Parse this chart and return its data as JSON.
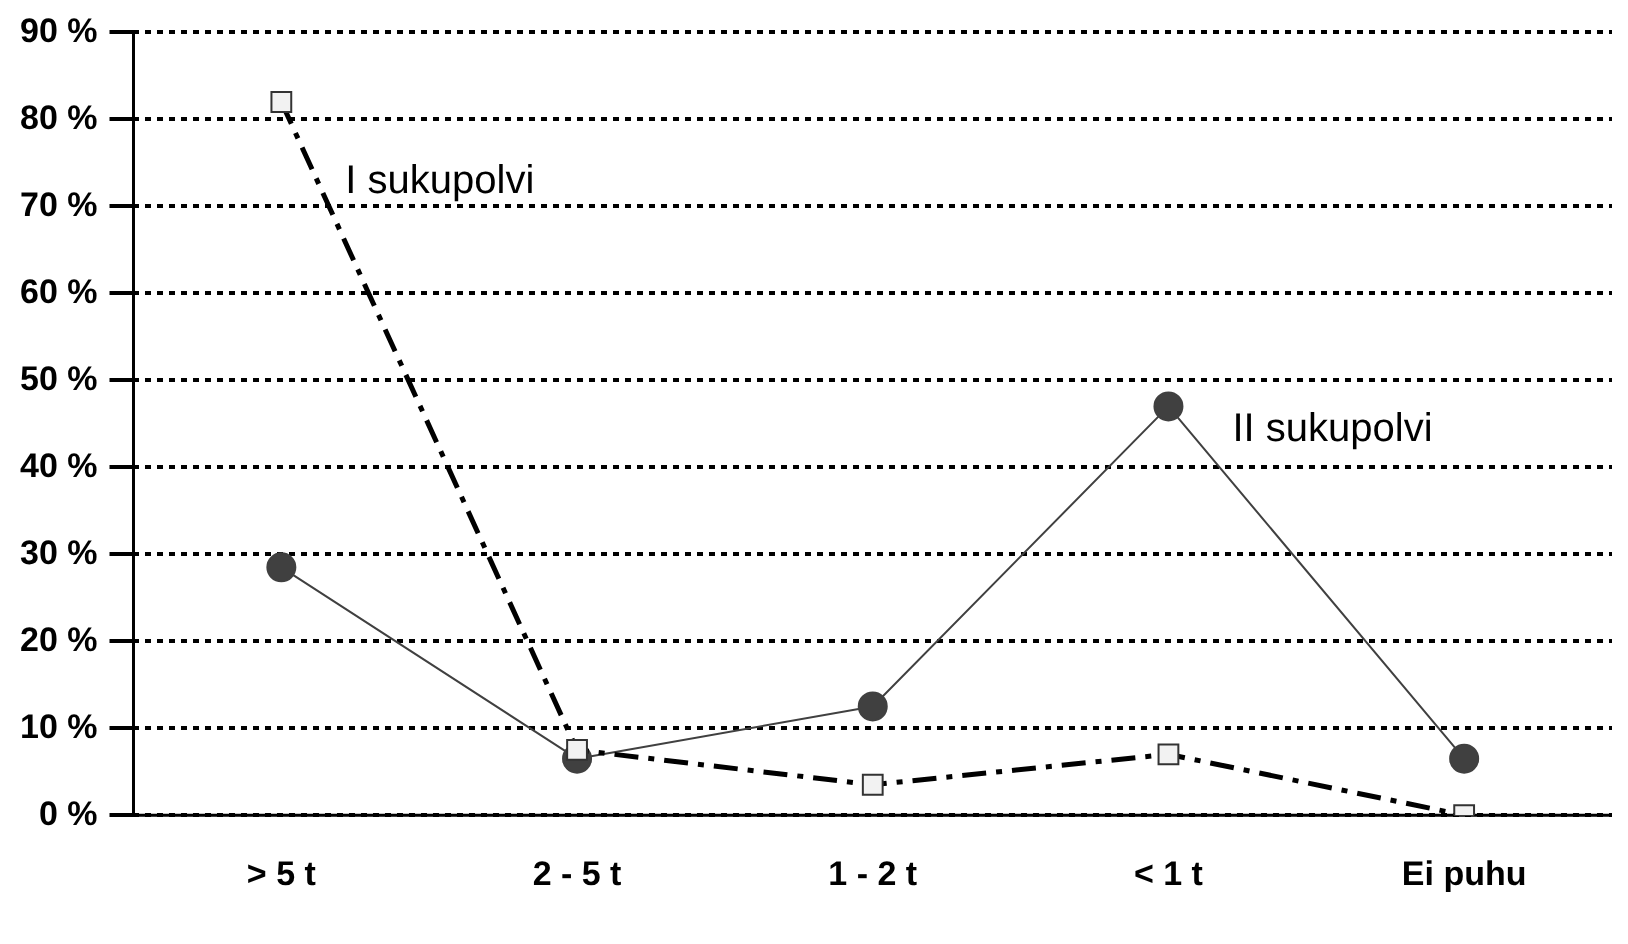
{
  "chart_data": {
    "type": "line",
    "categories": [
      "> 5 t",
      "2 - 5 t",
      "1 - 2 t",
      "< 1 t",
      "Ei puhu"
    ],
    "series": [
      {
        "name": "I sukupolvi",
        "color": "#000000",
        "marker": "square",
        "line_style": "dashed",
        "values": [
          82,
          7.5,
          3.5,
          7,
          0
        ]
      },
      {
        "name": "II sukupolvi",
        "color": "#404040",
        "marker": "circle",
        "line_style": "solid",
        "values": [
          28.5,
          6.5,
          12.5,
          47,
          6.5
        ]
      }
    ],
    "ylim": [
      0,
      90
    ],
    "yticks": [
      {
        "value": 0,
        "label": "0 %"
      },
      {
        "value": 10,
        "label": "10 %"
      },
      {
        "value": 20,
        "label": "20 %"
      },
      {
        "value": 30,
        "label": "30 %"
      },
      {
        "value": 40,
        "label": "40 %"
      },
      {
        "value": 50,
        "label": "50 %"
      },
      {
        "value": 60,
        "label": "60 %"
      },
      {
        "value": 70,
        "label": "70 %"
      },
      {
        "value": 80,
        "label": "80 %"
      },
      {
        "value": 90,
        "label": "90 %"
      }
    ],
    "grid": "y",
    "legend": false
  }
}
